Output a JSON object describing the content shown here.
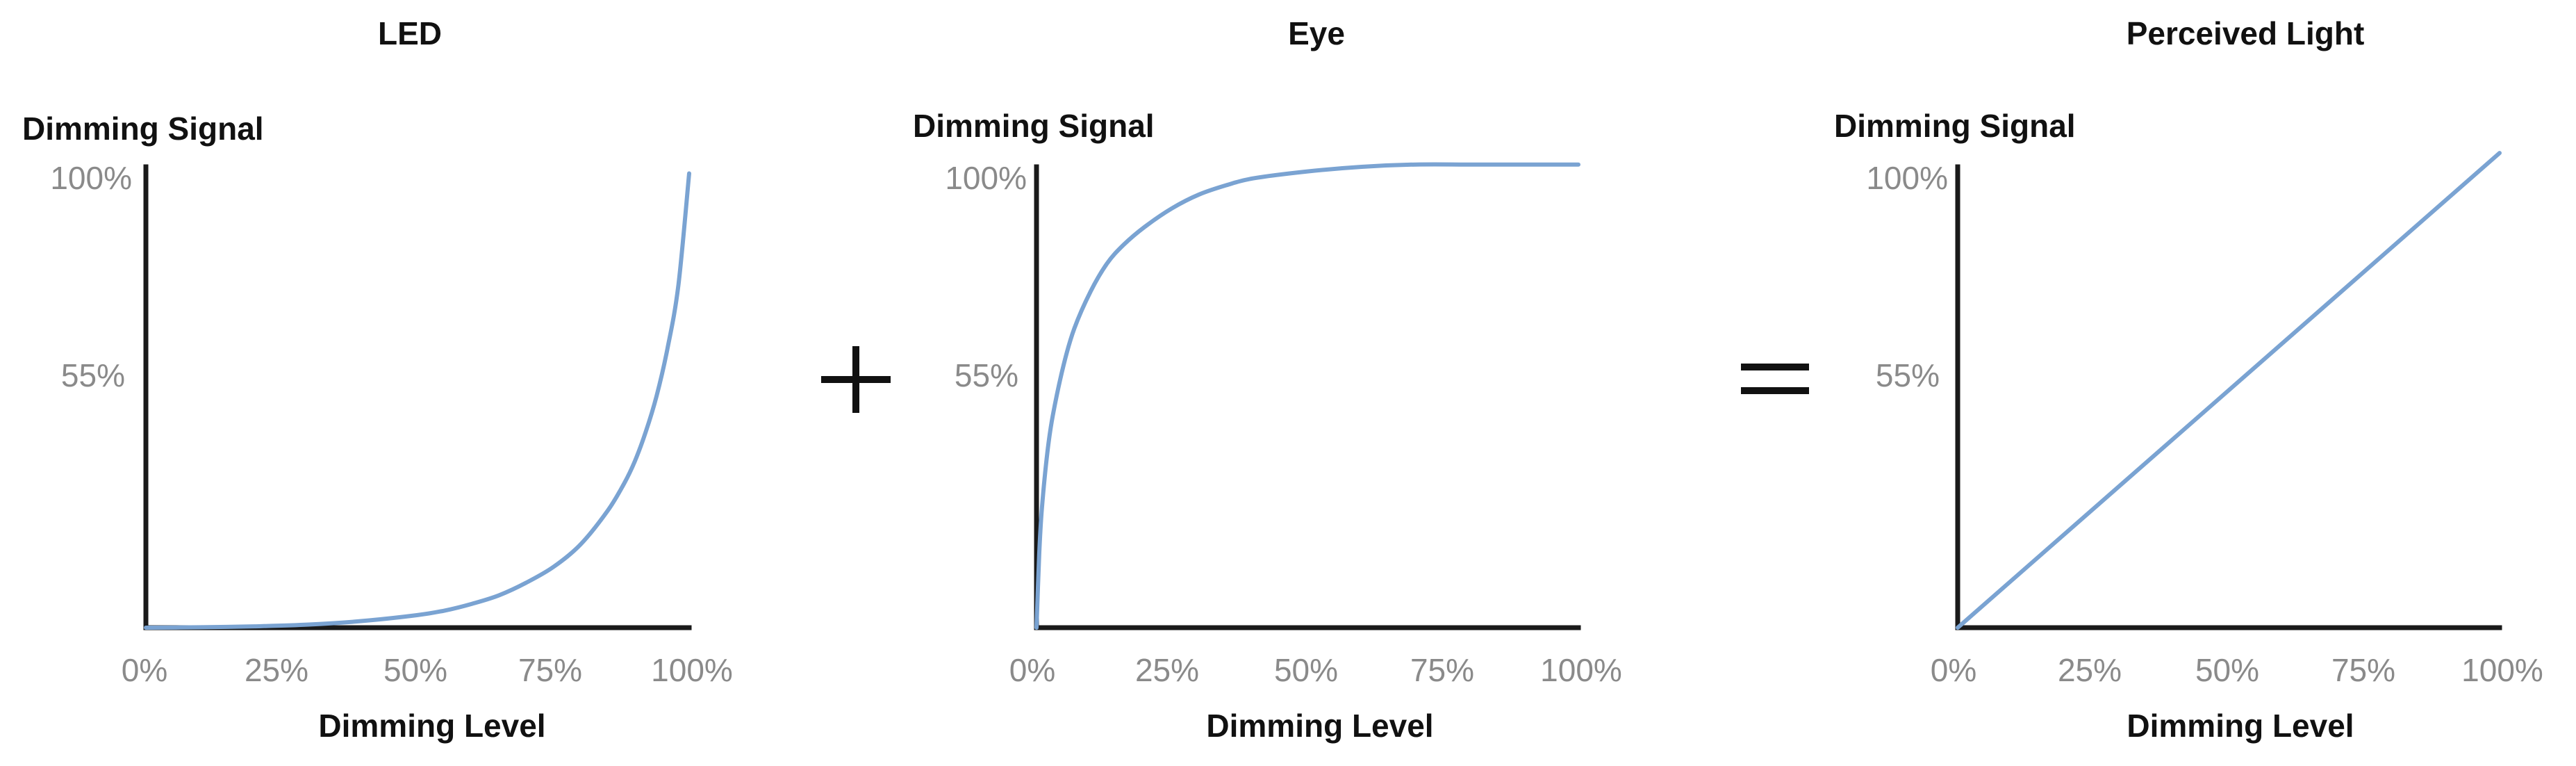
{
  "colors": {
    "curve": "#7aa3d2",
    "axis": "#1a1a1a",
    "tick": "#8a8a8a",
    "text": "#111111"
  },
  "operators": [
    "plus",
    "equals"
  ],
  "chart_data": [
    {
      "type": "line",
      "title": "LED",
      "ylabel": "Dimming Signal",
      "xlabel": "Dimming Level",
      "x_ticks": [
        "0%",
        "25%",
        "50%",
        "75%",
        "100%"
      ],
      "y_ticks": [
        "55%",
        "100%"
      ],
      "y_tick_values": [
        55,
        100
      ],
      "xlim": [
        0,
        100
      ],
      "ylim": [
        0,
        100
      ],
      "series": [
        {
          "x": [
            0,
            10,
            20,
            30,
            40,
            50,
            55,
            60,
            65,
            70,
            75,
            80,
            85,
            88,
            90,
            92,
            94,
            96,
            98,
            100
          ],
          "y": [
            0,
            0.1,
            0.3,
            0.7,
            1.5,
            2.8,
            3.8,
            5.3,
            7.2,
            10,
            13.5,
            18.5,
            26,
            32,
            37,
            43.5,
            51.5,
            62,
            76,
            101
          ]
        }
      ]
    },
    {
      "type": "line",
      "title": "Eye",
      "ylabel": "Dimming Signal",
      "xlabel": "Dimming Level",
      "x_ticks": [
        "0%",
        "25%",
        "50%",
        "75%",
        "100%"
      ],
      "y_ticks": [
        "55%",
        "100%"
      ],
      "y_tick_values": [
        55,
        100
      ],
      "xlim": [
        0,
        100
      ],
      "ylim": [
        0,
        100
      ],
      "series": [
        {
          "x": [
            0,
            0.5,
            1,
            2,
            3,
            5,
            7,
            10,
            13,
            16,
            20,
            25,
            30,
            35,
            40,
            50,
            60,
            70,
            80,
            90,
            100
          ],
          "y": [
            0,
            16,
            26,
            38,
            46,
            57,
            65,
            73,
            79,
            83,
            87,
            91,
            94,
            96,
            97.5,
            99,
            100,
            100.5,
            100.5,
            100.5,
            100.5
          ]
        }
      ]
    },
    {
      "type": "line",
      "title": "Perceived Light",
      "ylabel": "Dimming Signal",
      "xlabel": "Dimming Level",
      "x_ticks": [
        "0%",
        "25%",
        "50%",
        "75%",
        "100%"
      ],
      "y_ticks": [
        "55%",
        "100%"
      ],
      "y_tick_values": [
        55,
        100
      ],
      "xlim": [
        0,
        100
      ],
      "ylim": [
        0,
        100
      ],
      "series": [
        {
          "x": [
            0,
            100
          ],
          "y": [
            0,
            103
          ]
        }
      ]
    }
  ]
}
